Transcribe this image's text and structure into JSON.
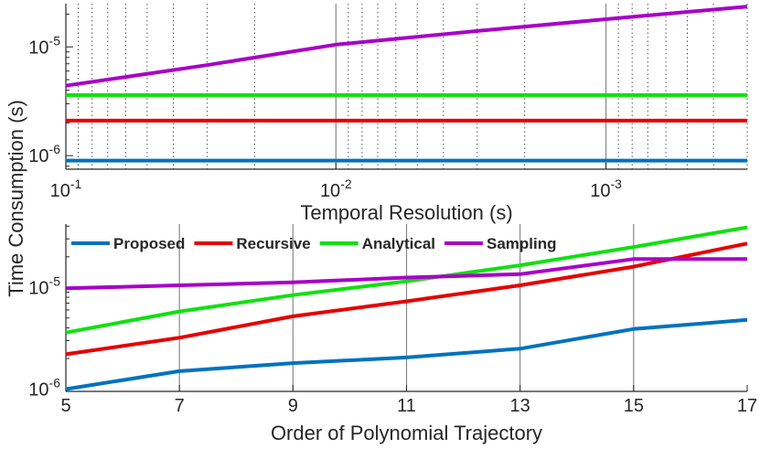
{
  "shared_ylabel": "Time Consumption (s)",
  "chart_data": [
    {
      "type": "line",
      "xlabel": "Temporal Resolution (s)",
      "x_scale": "log",
      "x_reversed": true,
      "y_scale": "log",
      "xlim": [
        0.1,
        0.0003
      ],
      "ylim": [
        7.5e-07,
        2.5e-05
      ],
      "xticks": [
        {
          "value": 0.1,
          "base": "10",
          "exp": "-1"
        },
        {
          "value": 0.01,
          "base": "10",
          "exp": "-2"
        },
        {
          "value": 0.001,
          "base": "10",
          "exp": "-3"
        }
      ],
      "yticks": [
        {
          "value": 1e-06,
          "base": "10",
          "exp": "-6"
        },
        {
          "value": 1e-05,
          "base": "10",
          "exp": "-5"
        }
      ],
      "grid": "x-major and x-minor (dotted)",
      "series": [
        {
          "key": "proposed",
          "color": "#0072BD",
          "x": [
            0.1,
            0.0003
          ],
          "y": [
            9e-07,
            9e-07
          ]
        },
        {
          "key": "recursive",
          "color": "#E60000",
          "x": [
            0.1,
            0.0003
          ],
          "y": [
            2.1e-06,
            2.1e-06
          ]
        },
        {
          "key": "analytical",
          "color": "#11E011",
          "x": [
            0.1,
            0.0003
          ],
          "y": [
            3.6e-06,
            3.6e-06
          ]
        },
        {
          "key": "sampling",
          "color": "#A800C8",
          "x": [
            0.1,
            0.03,
            0.01,
            0.003,
            0.001,
            0.0003
          ],
          "y": [
            4.4e-06,
            6.8e-06,
            1.05e-05,
            1.4e-05,
            1.8e-05,
            2.35e-05
          ]
        }
      ]
    },
    {
      "type": "line",
      "xlabel": "Order of Polynomial Trajectory",
      "y_scale": "log",
      "xlim": [
        5,
        17
      ],
      "ylim": [
        9.5e-07,
        4.2e-05
      ],
      "xticks": [
        5,
        7,
        9,
        11,
        13,
        15,
        17
      ],
      "yticks": [
        {
          "value": 1e-06,
          "base": "10",
          "exp": "-6"
        },
        {
          "value": 1e-05,
          "base": "10",
          "exp": "-5"
        }
      ],
      "grid": "x-major",
      "legend": {
        "placement": "top, horizontal"
      },
      "series": [
        {
          "key": "proposed",
          "name": "Proposed",
          "color": "#0072BD",
          "x": [
            5,
            7,
            9,
            11,
            13,
            15,
            17
          ],
          "y": [
            1e-06,
            1.5e-06,
            1.8e-06,
            2.05e-06,
            2.5e-06,
            3.9e-06,
            4.8e-06
          ]
        },
        {
          "key": "recursive",
          "name": "Recursive",
          "color": "#E60000",
          "x": [
            5,
            7,
            9,
            11,
            13,
            15,
            17
          ],
          "y": [
            2.2e-06,
            3.2e-06,
            5.2e-06,
            7.3e-06,
            1.05e-05,
            1.6e-05,
            2.7e-05
          ]
        },
        {
          "key": "analytical",
          "name": "Analytical",
          "color": "#11E011",
          "x": [
            5,
            7,
            9,
            11,
            13,
            15,
            17
          ],
          "y": [
            3.6e-06,
            5.8e-06,
            8.4e-06,
            1.15e-05,
            1.65e-05,
            2.5e-05,
            3.9e-05
          ]
        },
        {
          "key": "sampling",
          "name": "Sampling",
          "color": "#A800C8",
          "x": [
            5,
            7,
            9,
            11,
            13,
            15,
            17
          ],
          "y": [
            9.8e-06,
            1.05e-05,
            1.12e-05,
            1.25e-05,
            1.35e-05,
            1.9e-05,
            1.9e-05
          ]
        }
      ]
    }
  ]
}
